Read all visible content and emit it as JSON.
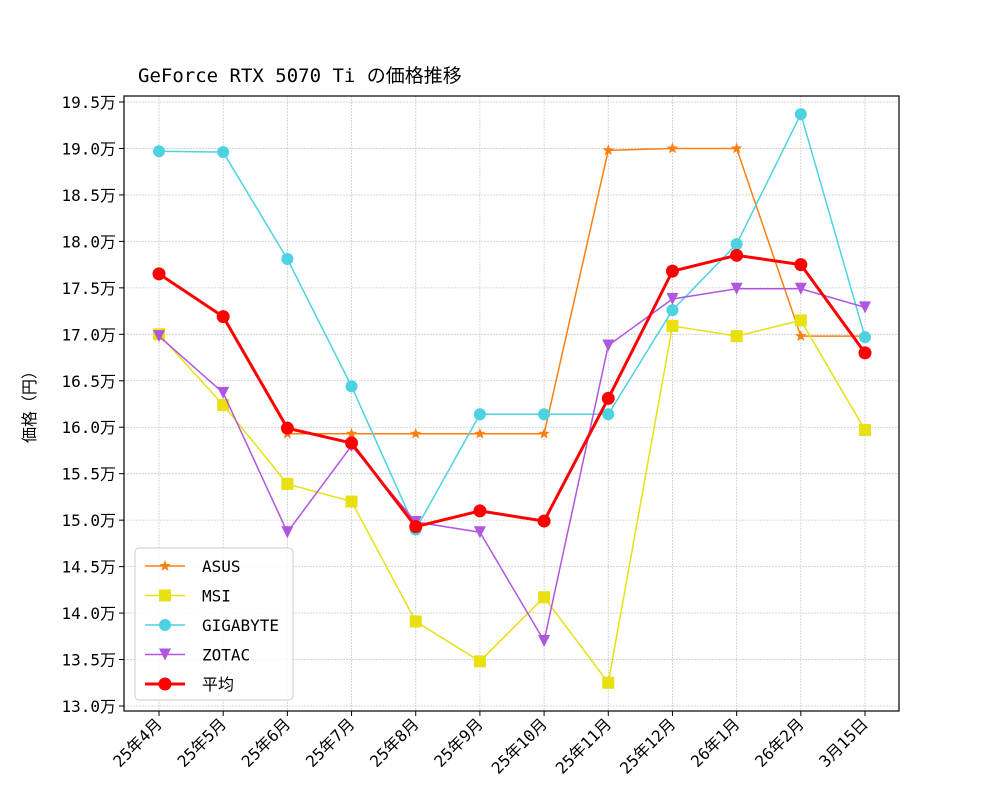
{
  "chart_data": {
    "type": "line",
    "title": "GeForce RTX 5070 Ti の価格推移",
    "xlabel": "",
    "ylabel": "価格（円）",
    "categories": [
      "25年4月",
      "25年5月",
      "25年6月",
      "25年7月",
      "25年8月",
      "25年9月",
      "25年10月",
      "25年11月",
      "25年12月",
      "26年1月",
      "26年2月",
      "3月15日"
    ],
    "ylim": [
      13.0,
      19.5
    ],
    "yticks": [
      13.0,
      13.5,
      14.0,
      14.5,
      15.0,
      15.5,
      16.0,
      16.5,
      17.0,
      17.5,
      18.0,
      18.5,
      19.0,
      19.5
    ],
    "ytick_suffix": "万",
    "grid": true,
    "legend_position": "lower-left",
    "series": [
      {
        "name": "ASUS",
        "color": "#ff7f0e",
        "marker": "star",
        "values": [
          null,
          null,
          15.93,
          15.93,
          15.93,
          15.93,
          15.93,
          18.98,
          19.0,
          19.0,
          16.98,
          16.98
        ]
      },
      {
        "name": "MSI",
        "color": "#e8e010",
        "marker": "square",
        "values": [
          17.0,
          16.24,
          15.39,
          15.2,
          13.91,
          13.48,
          14.17,
          13.25,
          17.09,
          16.98,
          17.15,
          15.97
        ]
      },
      {
        "name": "GIGABYTE",
        "color": "#4dd2e0",
        "marker": "circle",
        "values": [
          18.97,
          18.96,
          17.81,
          16.44,
          14.9,
          16.14,
          16.14,
          16.14,
          17.26,
          17.97,
          19.37,
          16.97
        ]
      },
      {
        "name": "ZOTAC",
        "color": "#b057e0",
        "marker": "triangle-down",
        "values": [
          16.98,
          16.37,
          14.87,
          15.8,
          14.98,
          14.87,
          13.7,
          16.88,
          17.38,
          17.49,
          17.49,
          17.29
        ]
      },
      {
        "name": "平均",
        "color": "#ff0000",
        "marker": "circle",
        "bold": true,
        "values": [
          17.65,
          17.19,
          15.99,
          15.83,
          14.93,
          15.1,
          14.99,
          16.31,
          17.68,
          17.85,
          17.75,
          16.8
        ]
      }
    ]
  }
}
